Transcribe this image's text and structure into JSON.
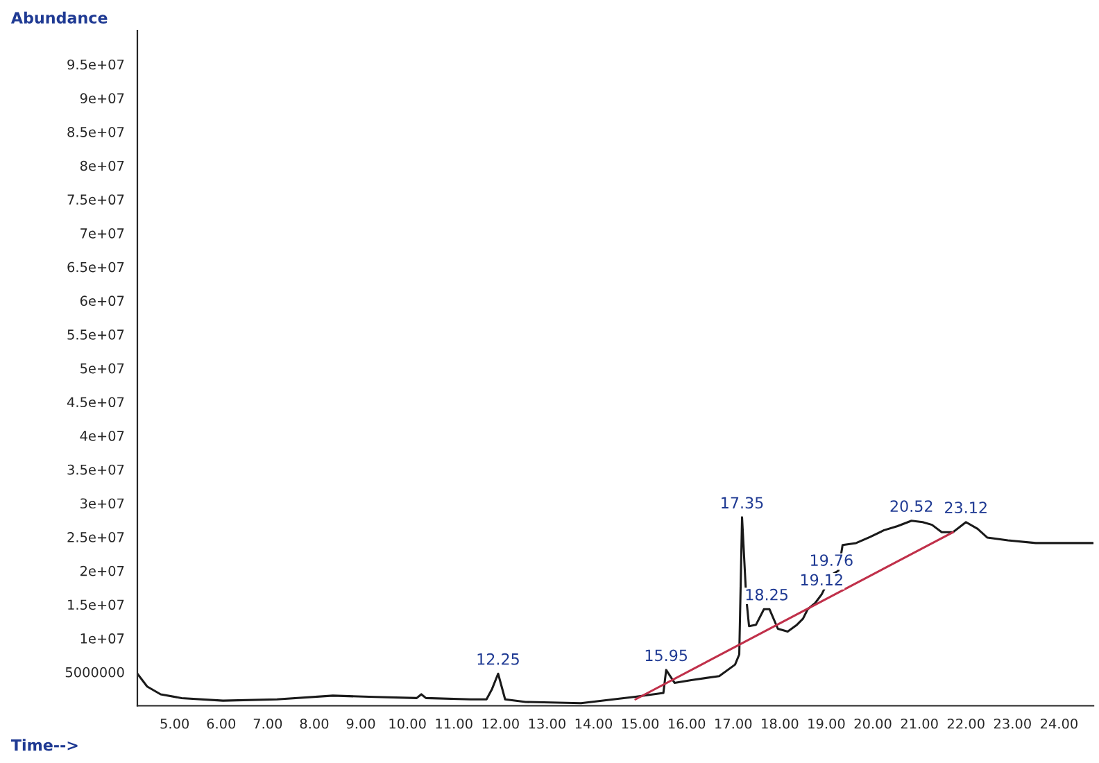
{
  "chart_data": {
    "type": "line",
    "xlabel": "Time-->",
    "ylabel": "Abundance",
    "xlim": [
      4.2,
      24.74
    ],
    "ylim": [
      0,
      100000000
    ],
    "xticks": [
      {
        "value": 5,
        "label": "5.00"
      },
      {
        "value": 6,
        "label": "6.00"
      },
      {
        "value": 7,
        "label": "7.00"
      },
      {
        "value": 8,
        "label": "8.00"
      },
      {
        "value": 9,
        "label": "9.00"
      },
      {
        "value": 10,
        "label": "10.00"
      },
      {
        "value": 11,
        "label": "11.00"
      },
      {
        "value": 12,
        "label": "12.00"
      },
      {
        "value": 13,
        "label": "13.00"
      },
      {
        "value": 14,
        "label": "14.00"
      },
      {
        "value": 15,
        "label": "15.00"
      },
      {
        "value": 16,
        "label": "16.00"
      },
      {
        "value": 17,
        "label": "17.00"
      },
      {
        "value": 18,
        "label": "18.00"
      },
      {
        "value": 19,
        "label": "19.00"
      },
      {
        "value": 20,
        "label": "20.00"
      },
      {
        "value": 21,
        "label": "21.00"
      },
      {
        "value": 22,
        "label": "22.00"
      },
      {
        "value": 23,
        "label": "23.00"
      },
      {
        "value": 24,
        "label": "24.00"
      }
    ],
    "yticks": [
      5000000,
      {
        "value": 10000000,
        "label": "1e+07"
      },
      {
        "value": 15000000,
        "label": "1.5e+07"
      },
      {
        "value": 20000000,
        "label": "2e+07"
      },
      {
        "value": 25000000,
        "label": "2.5e+07"
      },
      {
        "value": 30000000,
        "label": "3e+07"
      },
      {
        "value": 35000000,
        "label": "3.5e+07"
      },
      {
        "value": 40000000,
        "label": "4e+07"
      },
      {
        "value": 45000000,
        "label": "4.5e+07"
      },
      {
        "value": 50000000,
        "label": "5e+07"
      },
      {
        "value": 55000000,
        "label": "5.5e+07"
      },
      {
        "value": 60000000,
        "label": "6e+07"
      },
      {
        "value": 65000000,
        "label": "6.5e+07"
      },
      {
        "value": 70000000,
        "label": "7e+07"
      },
      {
        "value": 75000000,
        "label": "7.5e+07"
      },
      {
        "value": 80000000,
        "label": "8e+07"
      },
      {
        "value": 85000000,
        "label": "8.5e+07"
      },
      {
        "value": 90000000,
        "label": "9e+07"
      },
      {
        "value": 95000000,
        "label": "9.5e+07"
      }
    ],
    "grid": false,
    "legend": false,
    "marker": "none",
    "line_style": "solid",
    "series": [
      {
        "color": "#1a1a1a",
        "x": [
          4.2,
          4.41,
          4.7,
          5.15,
          6.04,
          7.2,
          8.4,
          9.3,
          10.2,
          10.3,
          10.4,
          11.36,
          11.7,
          11.82,
          11.95,
          12.1,
          12.54,
          13.73,
          14.9,
          15.5,
          15.56,
          15.74,
          16.1,
          16.7,
          17.04,
          17.13,
          17.19,
          17.28,
          17.34,
          17.49,
          17.66,
          17.78,
          17.96,
          18.17,
          18.37,
          18.5,
          18.6,
          18.76,
          18.9,
          19.11,
          19.26,
          19.35,
          19.64,
          19.94,
          20.24,
          20.53,
          20.83,
          21.07,
          21.27,
          21.48,
          21.72,
          22.0,
          22.25,
          22.46,
          22.9,
          23.5,
          24.08,
          24.73
        ],
        "values": [
          4750000,
          2850000,
          1700000,
          1140000,
          760000,
          950000,
          1500000,
          1300000,
          1140000,
          1700000,
          1140000,
          950000,
          950000,
          2500000,
          4750000,
          950000,
          570000,
          380000,
          1330000,
          1900000,
          5300000,
          3400000,
          3800000,
          4400000,
          6100000,
          7600000,
          27900000,
          16000000,
          11800000,
          12000000,
          14300000,
          14300000,
          11400000,
          11000000,
          12000000,
          12900000,
          14300000,
          15200000,
          16500000,
          19400000,
          20000000,
          23800000,
          24100000,
          25000000,
          26000000,
          26600000,
          27400000,
          27200000,
          26800000,
          25700000,
          25700000,
          27200000,
          26200000,
          24900000,
          24500000,
          24100000,
          24100000,
          24100000
        ]
      },
      {
        "color": "#c0304a",
        "x": [
          14.9,
          21.72
        ],
        "values": [
          950000,
          25700000
        ]
      }
    ],
    "annotations": [
      {
        "text": "12.25",
        "x": 11.95,
        "y": 4750000
      },
      {
        "text": "15.95",
        "x": 15.56,
        "y": 5300000
      },
      {
        "text": "17.35",
        "x": 17.19,
        "y": 27900000
      },
      {
        "text": "18.25",
        "x": 17.72,
        "y": 14300000
      },
      {
        "text": "19.12",
        "x": 18.9,
        "y": 16500000
      },
      {
        "text": "19.76",
        "x": 19.11,
        "y": 19400000
      },
      {
        "text": "20.52",
        "x": 20.83,
        "y": 27400000
      },
      {
        "text": "23.12",
        "x": 22.0,
        "y": 27200000
      }
    ]
  }
}
